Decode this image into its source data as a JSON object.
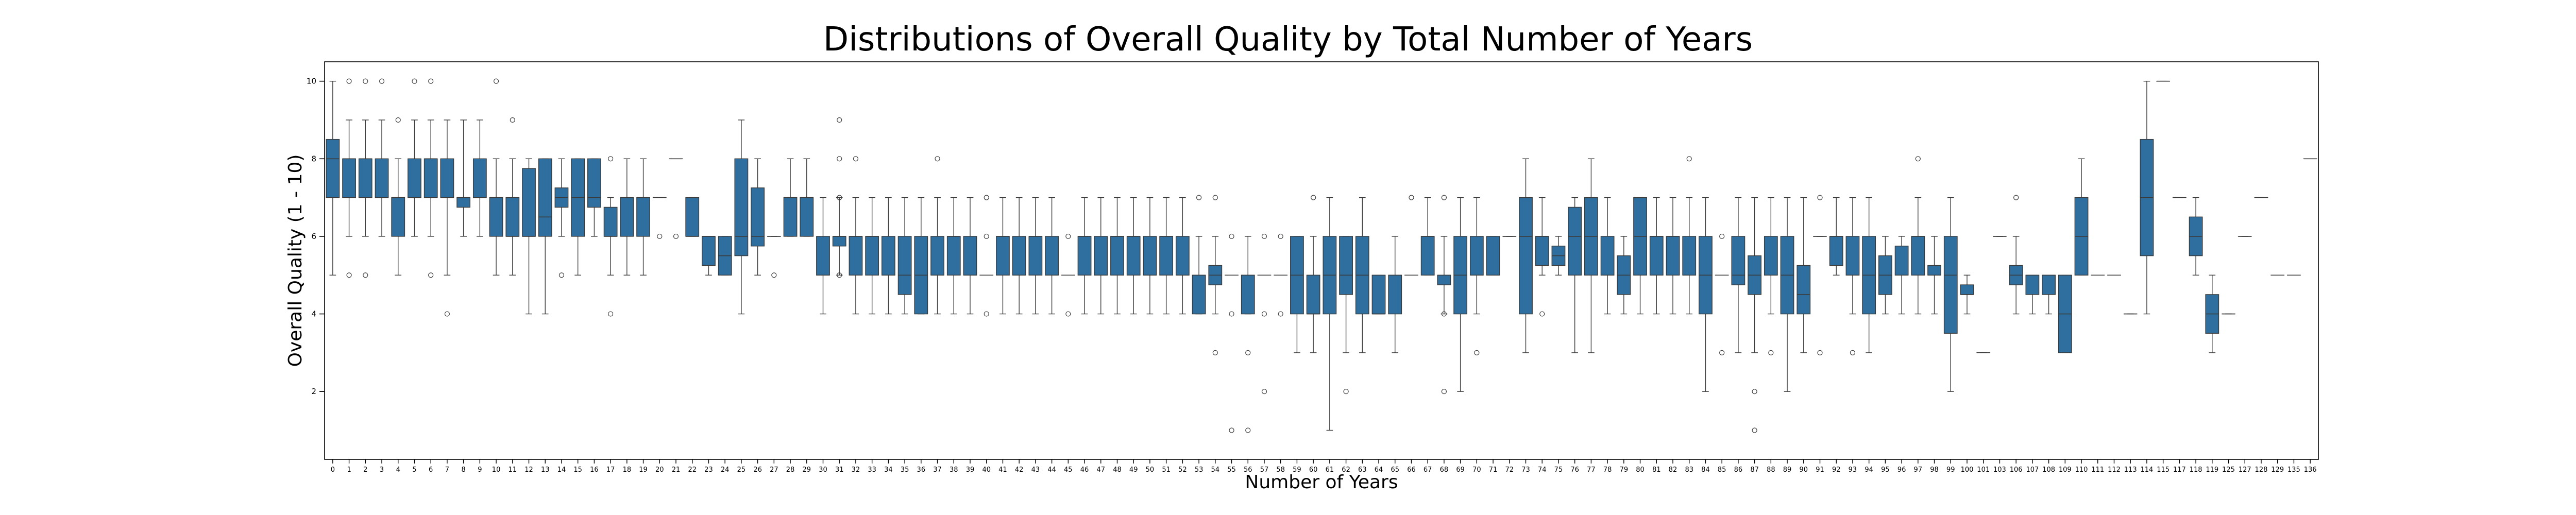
{
  "chart_data": {
    "type": "box",
    "title": "Distributions of Overall Quality by Total Number of Years",
    "xlabel": "Number of Years",
    "ylabel": "Overall Quality (1 - 10)",
    "ylim": [
      0.25,
      10.5
    ],
    "yticks": [
      2,
      4,
      6,
      8,
      10
    ],
    "grid": false,
    "box_color": "#2f6f9f",
    "edge_color": "#3b3b3b",
    "categories": [
      "0",
      "1",
      "2",
      "3",
      "4",
      "5",
      "6",
      "7",
      "8",
      "9",
      "10",
      "11",
      "12",
      "13",
      "14",
      "15",
      "16",
      "17",
      "18",
      "19",
      "20",
      "21",
      "22",
      "23",
      "24",
      "25",
      "26",
      "27",
      "28",
      "29",
      "30",
      "31",
      "32",
      "33",
      "34",
      "35",
      "36",
      "37",
      "38",
      "39",
      "40",
      "41",
      "42",
      "43",
      "44",
      "45",
      "46",
      "47",
      "48",
      "49",
      "50",
      "51",
      "52",
      "53",
      "54",
      "55",
      "56",
      "57",
      "58",
      "59",
      "60",
      "61",
      "62",
      "63",
      "64",
      "65",
      "66",
      "67",
      "68",
      "69",
      "70",
      "71",
      "72",
      "73",
      "74",
      "75",
      "76",
      "77",
      "78",
      "79",
      "80",
      "81",
      "82",
      "83",
      "84",
      "85",
      "86",
      "87",
      "88",
      "89",
      "90",
      "91",
      "92",
      "93",
      "94",
      "95",
      "96",
      "97",
      "98",
      "99",
      "100",
      "101",
      "103",
      "106",
      "107",
      "108",
      "109",
      "110",
      "111",
      "112",
      "113",
      "114",
      "115",
      "117",
      "118",
      "119",
      "125",
      "127",
      "128",
      "129",
      "135",
      "136"
    ],
    "boxes": [
      {
        "q1": 7,
        "med": 8,
        "q3": 8.5,
        "wlo": 5,
        "whi": 10,
        "fliers": []
      },
      {
        "q1": 7,
        "med": 8,
        "q3": 8,
        "wlo": 6,
        "whi": 9,
        "fliers": [
          10,
          5
        ]
      },
      {
        "q1": 7,
        "med": 8,
        "q3": 8,
        "wlo": 6,
        "whi": 9,
        "fliers": [
          10,
          5
        ]
      },
      {
        "q1": 7,
        "med": 7,
        "q3": 8,
        "wlo": 6,
        "whi": 9,
        "fliers": [
          10
        ]
      },
      {
        "q1": 6,
        "med": 7,
        "q3": 7,
        "wlo": 5,
        "whi": 8,
        "fliers": [
          9
        ]
      },
      {
        "q1": 7,
        "med": 7,
        "q3": 8,
        "wlo": 6,
        "whi": 9,
        "fliers": [
          10
        ]
      },
      {
        "q1": 7,
        "med": 8,
        "q3": 8,
        "wlo": 6,
        "whi": 9,
        "fliers": [
          10,
          5
        ]
      },
      {
        "q1": 7,
        "med": 7,
        "q3": 8,
        "wlo": 5,
        "whi": 9,
        "fliers": [
          4
        ]
      },
      {
        "q1": 6.75,
        "med": 7,
        "q3": 7,
        "wlo": 6,
        "whi": 9,
        "fliers": []
      },
      {
        "q1": 7,
        "med": 7,
        "q3": 8,
        "wlo": 6,
        "whi": 9,
        "fliers": []
      },
      {
        "q1": 6,
        "med": 7,
        "q3": 7,
        "wlo": 5,
        "whi": 8,
        "fliers": [
          10
        ]
      },
      {
        "q1": 6,
        "med": 6,
        "q3": 7,
        "wlo": 5,
        "whi": 8,
        "fliers": [
          9
        ]
      },
      {
        "q1": 6,
        "med": 6,
        "q3": 7.75,
        "wlo": 4,
        "whi": 8,
        "fliers": []
      },
      {
        "q1": 6,
        "med": 6.5,
        "q3": 8,
        "wlo": 4,
        "whi": 8,
        "fliers": []
      },
      {
        "q1": 6.75,
        "med": 7,
        "q3": 7.25,
        "wlo": 6,
        "whi": 8,
        "fliers": [
          5
        ]
      },
      {
        "q1": 6,
        "med": 7,
        "q3": 8,
        "wlo": 5,
        "whi": 8,
        "fliers": []
      },
      {
        "q1": 6.75,
        "med": 7,
        "q3": 8,
        "wlo": 6,
        "whi": 8,
        "fliers": []
      },
      {
        "q1": 6,
        "med": 6,
        "q3": 6.75,
        "wlo": 5,
        "whi": 7,
        "fliers": [
          8,
          4
        ]
      },
      {
        "q1": 6,
        "med": 7,
        "q3": 7,
        "wlo": 5,
        "whi": 8,
        "fliers": []
      },
      {
        "q1": 6,
        "med": 7,
        "q3": 7,
        "wlo": 5,
        "whi": 8,
        "fliers": []
      },
      {
        "q1": 7,
        "med": 7,
        "q3": 7,
        "wlo": 7,
        "whi": 7,
        "fliers": [
          6
        ]
      },
      {
        "q1": 8,
        "med": 8,
        "q3": 8,
        "wlo": 8,
        "whi": 8,
        "fliers": [
          6
        ]
      },
      {
        "q1": 6,
        "med": 6,
        "q3": 7,
        "wlo": 6,
        "whi": 7,
        "fliers": []
      },
      {
        "q1": 5.25,
        "med": 6,
        "q3": 6,
        "wlo": 5,
        "whi": 6,
        "fliers": []
      },
      {
        "q1": 5,
        "med": 5.5,
        "q3": 6,
        "wlo": 5,
        "whi": 6,
        "fliers": []
      },
      {
        "q1": 5.5,
        "med": 6,
        "q3": 8,
        "wlo": 4,
        "whi": 9,
        "fliers": []
      },
      {
        "q1": 5.75,
        "med": 6,
        "q3": 7.25,
        "wlo": 5,
        "whi": 8,
        "fliers": []
      },
      {
        "q1": 6,
        "med": 6,
        "q3": 6,
        "wlo": 6,
        "whi": 6,
        "fliers": [
          5
        ]
      },
      {
        "q1": 6,
        "med": 7,
        "q3": 7,
        "wlo": 6,
        "whi": 8,
        "fliers": []
      },
      {
        "q1": 6,
        "med": 7,
        "q3": 7,
        "wlo": 6,
        "whi": 8,
        "fliers": []
      },
      {
        "q1": 5,
        "med": 5,
        "q3": 6,
        "wlo": 4,
        "whi": 7,
        "fliers": []
      },
      {
        "q1": 5.75,
        "med": 6,
        "q3": 6,
        "wlo": 5,
        "whi": 7,
        "fliers": [
          9,
          8,
          7,
          5
        ]
      },
      {
        "q1": 5,
        "med": 6,
        "q3": 6,
        "wlo": 4,
        "whi": 7,
        "fliers": [
          8
        ]
      },
      {
        "q1": 5,
        "med": 6,
        "q3": 6,
        "wlo": 4,
        "whi": 7,
        "fliers": []
      },
      {
        "q1": 5,
        "med": 5,
        "q3": 6,
        "wlo": 4,
        "whi": 7,
        "fliers": []
      },
      {
        "q1": 4.5,
        "med": 5,
        "q3": 6,
        "wlo": 4,
        "whi": 7,
        "fliers": []
      },
      {
        "q1": 4,
        "med": 5,
        "q3": 6,
        "wlo": 4,
        "whi": 7,
        "fliers": []
      },
      {
        "q1": 5,
        "med": 5,
        "q3": 6,
        "wlo": 4,
        "whi": 7,
        "fliers": [
          8
        ]
      },
      {
        "q1": 5,
        "med": 6,
        "q3": 6,
        "wlo": 4,
        "whi": 7,
        "fliers": []
      },
      {
        "q1": 5,
        "med": 5,
        "q3": 6,
        "wlo": 4,
        "whi": 7,
        "fliers": []
      },
      {
        "q1": 5,
        "med": 5,
        "q3": 5,
        "wlo": 5,
        "whi": 5,
        "fliers": [
          7,
          6,
          4
        ]
      },
      {
        "q1": 5,
        "med": 6,
        "q3": 6,
        "wlo": 4,
        "whi": 7,
        "fliers": []
      },
      {
        "q1": 5,
        "med": 5,
        "q3": 6,
        "wlo": 4,
        "whi": 7,
        "fliers": []
      },
      {
        "q1": 5,
        "med": 6,
        "q3": 6,
        "wlo": 4,
        "whi": 7,
        "fliers": []
      },
      {
        "q1": 5,
        "med": 5,
        "q3": 6,
        "wlo": 4,
        "whi": 7,
        "fliers": []
      },
      {
        "q1": 5,
        "med": 5,
        "q3": 5,
        "wlo": 5,
        "whi": 5,
        "fliers": [
          6,
          4
        ]
      },
      {
        "q1": 5,
        "med": 6,
        "q3": 6,
        "wlo": 4,
        "whi": 7,
        "fliers": []
      },
      {
        "q1": 5,
        "med": 5,
        "q3": 6,
        "wlo": 4,
        "whi": 7,
        "fliers": []
      },
      {
        "q1": 5,
        "med": 6,
        "q3": 6,
        "wlo": 4,
        "whi": 7,
        "fliers": []
      },
      {
        "q1": 5,
        "med": 6,
        "q3": 6,
        "wlo": 4,
        "whi": 7,
        "fliers": []
      },
      {
        "q1": 5,
        "med": 5,
        "q3": 6,
        "wlo": 4,
        "whi": 7,
        "fliers": []
      },
      {
        "q1": 5,
        "med": 6,
        "q3": 6,
        "wlo": 4,
        "whi": 7,
        "fliers": []
      },
      {
        "q1": 5,
        "med": 5,
        "q3": 6,
        "wlo": 4,
        "whi": 7,
        "fliers": []
      },
      {
        "q1": 4,
        "med": 5,
        "q3": 5,
        "wlo": 4,
        "whi": 6,
        "fliers": [
          7
        ]
      },
      {
        "q1": 4.75,
        "med": 5,
        "q3": 5.25,
        "wlo": 4,
        "whi": 6,
        "fliers": [
          7,
          3
        ]
      },
      {
        "q1": 5,
        "med": 5,
        "q3": 5,
        "wlo": 5,
        "whi": 5,
        "fliers": [
          6,
          4,
          1
        ]
      },
      {
        "q1": 4,
        "med": 5,
        "q3": 5,
        "wlo": 4,
        "whi": 6,
        "fliers": [
          3,
          1
        ]
      },
      {
        "q1": 5,
        "med": 5,
        "q3": 5,
        "wlo": 5,
        "whi": 5,
        "fliers": [
          6,
          4,
          2
        ]
      },
      {
        "q1": 5,
        "med": 5,
        "q3": 5,
        "wlo": 5,
        "whi": 5,
        "fliers": [
          6,
          4
        ]
      },
      {
        "q1": 4,
        "med": 5,
        "q3": 6,
        "wlo": 3,
        "whi": 6,
        "fliers": []
      },
      {
        "q1": 4,
        "med": 4,
        "q3": 5,
        "wlo": 3,
        "whi": 6,
        "fliers": [
          7
        ]
      },
      {
        "q1": 4,
        "med": 5,
        "q3": 6,
        "wlo": 1,
        "whi": 7,
        "fliers": []
      },
      {
        "q1": 4.5,
        "med": 5,
        "q3": 6,
        "wlo": 3,
        "whi": 6,
        "fliers": [
          2
        ]
      },
      {
        "q1": 4,
        "med": 5,
        "q3": 6,
        "wlo": 3,
        "whi": 7,
        "fliers": []
      },
      {
        "q1": 4,
        "med": 4,
        "q3": 5,
        "wlo": 4,
        "whi": 5,
        "fliers": []
      },
      {
        "q1": 4,
        "med": 5,
        "q3": 5,
        "wlo": 3,
        "whi": 6,
        "fliers": []
      },
      {
        "q1": 5,
        "med": 5,
        "q3": 5,
        "wlo": 5,
        "whi": 5,
        "fliers": [
          7
        ]
      },
      {
        "q1": 5,
        "med": 6,
        "q3": 6,
        "wlo": 5,
        "whi": 7,
        "fliers": []
      },
      {
        "q1": 4.75,
        "med": 5,
        "q3": 5,
        "wlo": 4,
        "whi": 6,
        "fliers": [
          7,
          4,
          2
        ]
      },
      {
        "q1": 4,
        "med": 5,
        "q3": 6,
        "wlo": 2,
        "whi": 7,
        "fliers": []
      },
      {
        "q1": 5,
        "med": 5,
        "q3": 6,
        "wlo": 4,
        "whi": 7,
        "fliers": [
          3
        ]
      },
      {
        "q1": 5,
        "med": 5,
        "q3": 6,
        "wlo": 5,
        "whi": 6,
        "fliers": []
      },
      {
        "q1": 6,
        "med": 6,
        "q3": 6,
        "wlo": 6,
        "whi": 6,
        "fliers": []
      },
      {
        "q1": 4,
        "med": 6,
        "q3": 7,
        "wlo": 3,
        "whi": 8,
        "fliers": []
      },
      {
        "q1": 5.25,
        "med": 6,
        "q3": 6,
        "wlo": 5,
        "whi": 7,
        "fliers": [
          4
        ]
      },
      {
        "q1": 5.25,
        "med": 5.5,
        "q3": 5.75,
        "wlo": 5,
        "whi": 6,
        "fliers": []
      },
      {
        "q1": 5,
        "med": 6,
        "q3": 6.75,
        "wlo": 3,
        "whi": 7,
        "fliers": []
      },
      {
        "q1": 5,
        "med": 6,
        "q3": 7,
        "wlo": 3,
        "whi": 8,
        "fliers": []
      },
      {
        "q1": 5,
        "med": 5,
        "q3": 6,
        "wlo": 4,
        "whi": 7,
        "fliers": []
      },
      {
        "q1": 4.5,
        "med": 5,
        "q3": 5.5,
        "wlo": 4,
        "whi": 6,
        "fliers": []
      },
      {
        "q1": 5,
        "med": 6,
        "q3": 7,
        "wlo": 4,
        "whi": 7,
        "fliers": []
      },
      {
        "q1": 5,
        "med": 6,
        "q3": 6,
        "wlo": 4,
        "whi": 7,
        "fliers": []
      },
      {
        "q1": 5,
        "med": 6,
        "q3": 6,
        "wlo": 4,
        "whi": 7,
        "fliers": []
      },
      {
        "q1": 5,
        "med": 5,
        "q3": 6,
        "wlo": 4,
        "whi": 7,
        "fliers": [
          8
        ]
      },
      {
        "q1": 4,
        "med": 5,
        "q3": 6,
        "wlo": 2,
        "whi": 7,
        "fliers": []
      },
      {
        "q1": 5,
        "med": 5,
        "q3": 5,
        "wlo": 5,
        "whi": 5,
        "fliers": [
          6,
          3
        ]
      },
      {
        "q1": 4.75,
        "med": 5,
        "q3": 6,
        "wlo": 3,
        "whi": 7,
        "fliers": []
      },
      {
        "q1": 4.5,
        "med": 5,
        "q3": 5.5,
        "wlo": 3,
        "whi": 7,
        "fliers": [
          2,
          1
        ]
      },
      {
        "q1": 5,
        "med": 5,
        "q3": 6,
        "wlo": 4,
        "whi": 7,
        "fliers": [
          3
        ]
      },
      {
        "q1": 4,
        "med": 5,
        "q3": 6,
        "wlo": 2,
        "whi": 7,
        "fliers": []
      },
      {
        "q1": 4,
        "med": 4.5,
        "q3": 5.25,
        "wlo": 3,
        "whi": 7,
        "fliers": []
      },
      {
        "q1": 6,
        "med": 6,
        "q3": 6,
        "wlo": 6,
        "whi": 6,
        "fliers": [
          7,
          3
        ]
      },
      {
        "q1": 5.25,
        "med": 6,
        "q3": 6,
        "wlo": 5,
        "whi": 7,
        "fliers": []
      },
      {
        "q1": 5,
        "med": 5,
        "q3": 6,
        "wlo": 4,
        "whi": 7,
        "fliers": [
          3
        ]
      },
      {
        "q1": 4,
        "med": 5,
        "q3": 6,
        "wlo": 3,
        "whi": 7,
        "fliers": []
      },
      {
        "q1": 4.5,
        "med": 5,
        "q3": 5.5,
        "wlo": 4,
        "whi": 6,
        "fliers": []
      },
      {
        "q1": 5,
        "med": 5,
        "q3": 5.75,
        "wlo": 4,
        "whi": 6,
        "fliers": []
      },
      {
        "q1": 5,
        "med": 6,
        "q3": 6,
        "wlo": 4,
        "whi": 7,
        "fliers": [
          8
        ]
      },
      {
        "q1": 5,
        "med": 5,
        "q3": 5.25,
        "wlo": 4,
        "whi": 6,
        "fliers": []
      },
      {
        "q1": 3.5,
        "med": 5,
        "q3": 6,
        "wlo": 2,
        "whi": 7,
        "fliers": []
      },
      {
        "q1": 4.5,
        "med": 4.5,
        "q3": 4.75,
        "wlo": 4,
        "whi": 5,
        "fliers": []
      },
      {
        "q1": 3,
        "med": 3,
        "q3": 3,
        "wlo": 3,
        "whi": 3,
        "fliers": []
      },
      {
        "q1": 6,
        "med": 6,
        "q3": 6,
        "wlo": 6,
        "whi": 6,
        "fliers": []
      },
      {
        "q1": 4.75,
        "med": 5,
        "q3": 5.25,
        "wlo": 4,
        "whi": 6,
        "fliers": [
          7
        ]
      },
      {
        "q1": 4.5,
        "med": 5,
        "q3": 5,
        "wlo": 4,
        "whi": 5,
        "fliers": []
      },
      {
        "q1": 4.5,
        "med": 5,
        "q3": 5,
        "wlo": 4,
        "whi": 5,
        "fliers": []
      },
      {
        "q1": 3,
        "med": 4,
        "q3": 5,
        "wlo": 3,
        "whi": 5,
        "fliers": []
      },
      {
        "q1": 5,
        "med": 6,
        "q3": 7,
        "wlo": 5,
        "whi": 8,
        "fliers": []
      },
      {
        "q1": 5,
        "med": 5,
        "q3": 5,
        "wlo": 5,
        "whi": 5,
        "fliers": []
      },
      {
        "q1": 5,
        "med": 5,
        "q3": 5,
        "wlo": 5,
        "whi": 5,
        "fliers": []
      },
      {
        "q1": 4,
        "med": 4,
        "q3": 4,
        "wlo": 4,
        "whi": 4,
        "fliers": []
      },
      {
        "q1": 5.5,
        "med": 7,
        "q3": 8.5,
        "wlo": 4,
        "whi": 10,
        "fliers": []
      },
      {
        "q1": 10,
        "med": 10,
        "q3": 10,
        "wlo": 10,
        "whi": 10,
        "fliers": []
      },
      {
        "q1": 7,
        "med": 7,
        "q3": 7,
        "wlo": 7,
        "whi": 7,
        "fliers": []
      },
      {
        "q1": 5.5,
        "med": 6,
        "q3": 6.5,
        "wlo": 5,
        "whi": 7,
        "fliers": []
      },
      {
        "q1": 3.5,
        "med": 4,
        "q3": 4.5,
        "wlo": 3,
        "whi": 5,
        "fliers": []
      },
      {
        "q1": 4,
        "med": 4,
        "q3": 4,
        "wlo": 4,
        "whi": 4,
        "fliers": []
      },
      {
        "q1": 6,
        "med": 6,
        "q3": 6,
        "wlo": 6,
        "whi": 6,
        "fliers": []
      },
      {
        "q1": 7,
        "med": 7,
        "q3": 7,
        "wlo": 7,
        "whi": 7,
        "fliers": []
      },
      {
        "q1": 5,
        "med": 5,
        "q3": 5,
        "wlo": 5,
        "whi": 5,
        "fliers": []
      },
      {
        "q1": 5,
        "med": 5,
        "q3": 5,
        "wlo": 5,
        "whi": 5,
        "fliers": []
      },
      {
        "q1": 8,
        "med": 8,
        "q3": 8,
        "wlo": 8,
        "whi": 8,
        "fliers": []
      }
    ]
  }
}
